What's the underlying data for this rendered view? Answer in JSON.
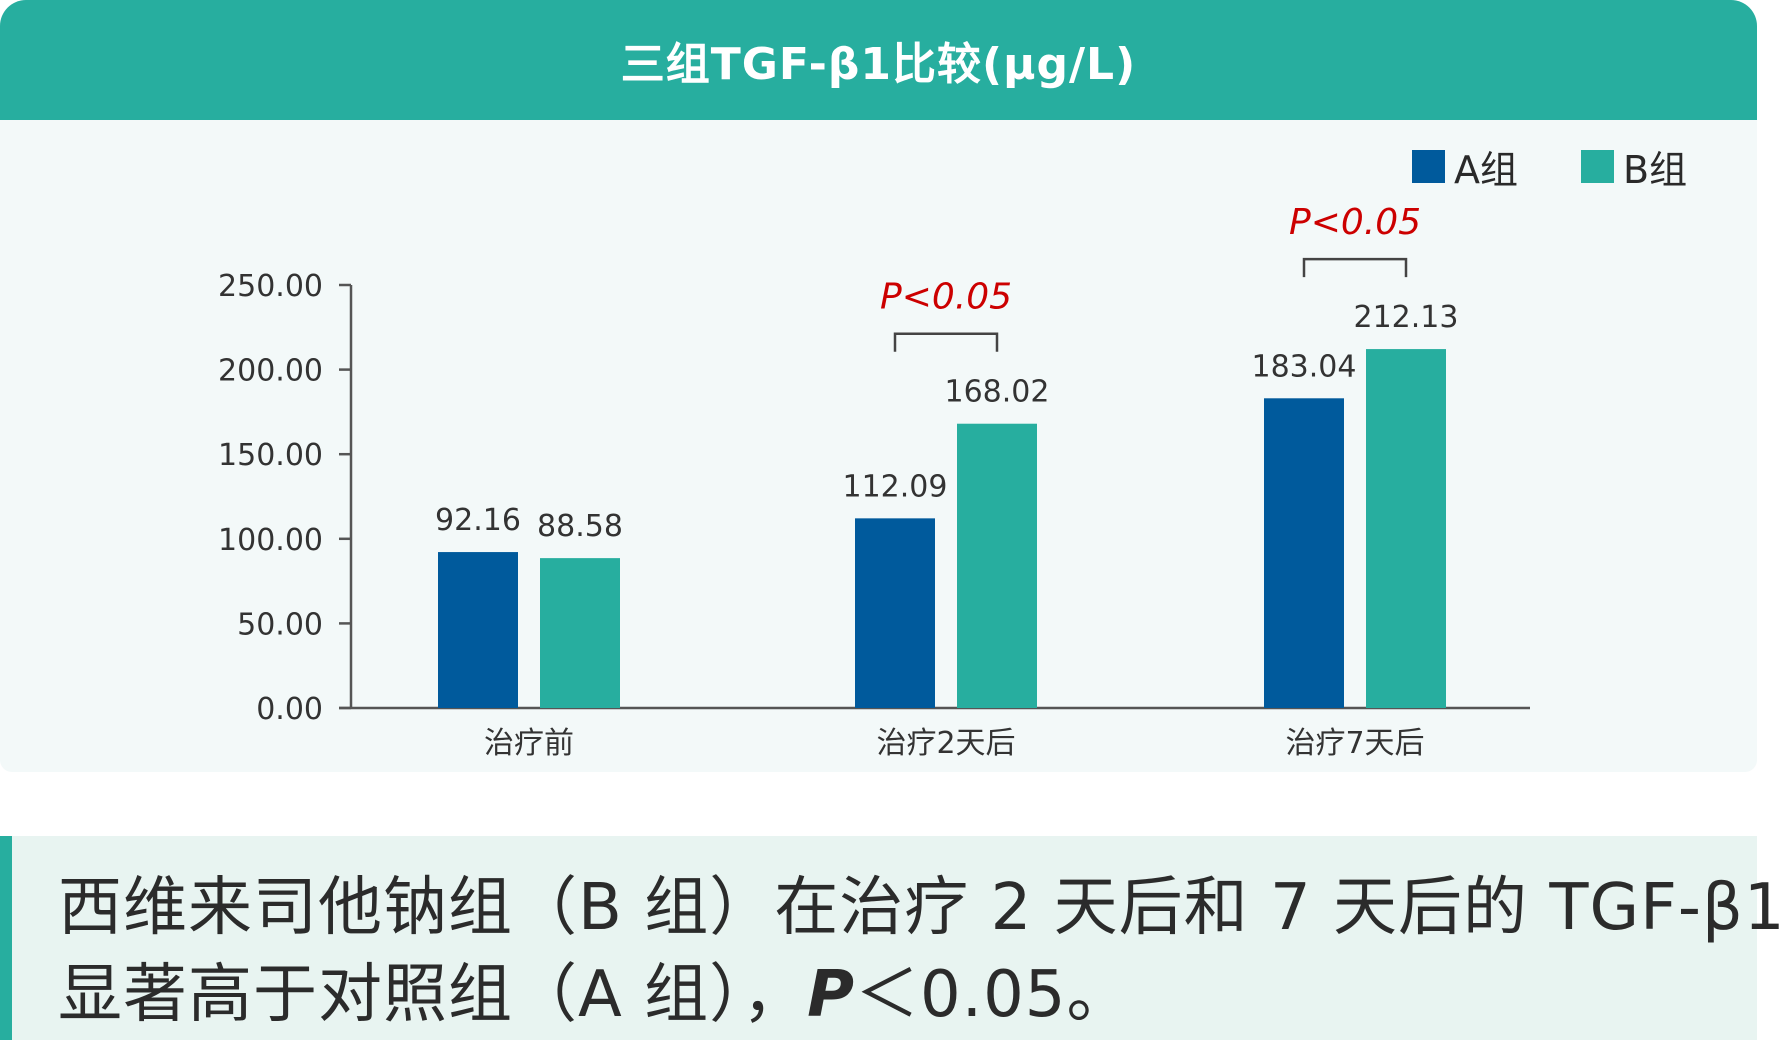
{
  "header": {
    "title": "三组TGF-β1比较(μg/L)"
  },
  "colors": {
    "header_bg": "#27ae9f",
    "series_a": "#005a9c",
    "series_b": "#27ae9f",
    "significance": "#cc0000",
    "axis": "#555555"
  },
  "chart_data": {
    "type": "bar",
    "categories": [
      "治疗前",
      "治疗2天后",
      "治疗7天后"
    ],
    "series": [
      {
        "name": "A组",
        "values": [
          92.16,
          112.09,
          183.04
        ]
      },
      {
        "name": "B组",
        "values": [
          88.58,
          168.02,
          212.13
        ]
      }
    ],
    "data_labels": [
      [
        "92.16",
        "112.09",
        "183.04"
      ],
      [
        "88.58",
        "168.02",
        "212.13"
      ]
    ],
    "ylim": [
      0,
      250
    ],
    "yticks": [
      0,
      50,
      100,
      150,
      200,
      250
    ],
    "ytick_labels": [
      "0.00",
      "50.00",
      "100.00",
      "150.00",
      "200.00",
      "250.00"
    ],
    "legend_position": "top-right",
    "grid": false,
    "annotations": [
      {
        "category_index": 1,
        "text": "P<0.05"
      },
      {
        "category_index": 2,
        "text": "P<0.05"
      }
    ]
  },
  "caption": {
    "line1": "西维来司他钠组（B 组）在治疗 2 天后和 7 天后的 TGF-β1",
    "line2_pre": "显著高于对照组（A 组），",
    "line2_p": "P",
    "line2_post": "＜0.05。"
  }
}
